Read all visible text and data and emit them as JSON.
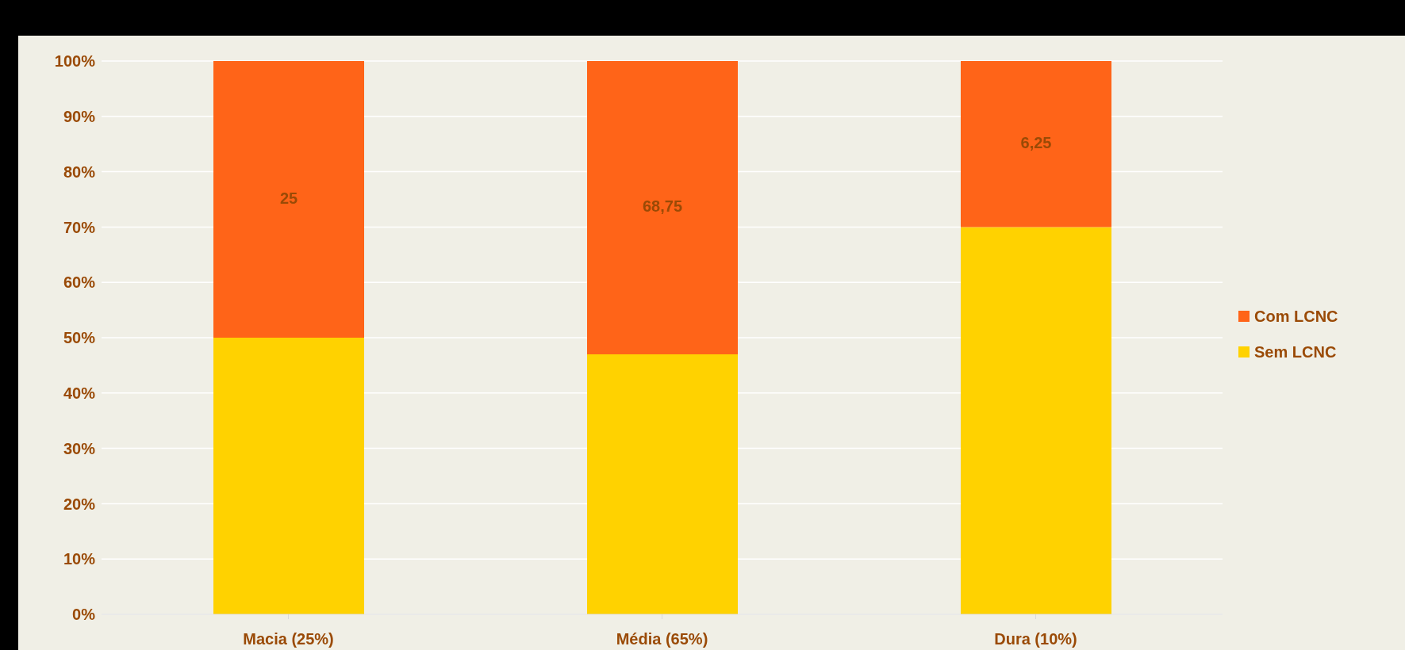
{
  "chart_data": {
    "type": "bar",
    "stacked": true,
    "categories": [
      "Macia (25%)",
      "Média (65%)",
      "Dura (10%)"
    ],
    "series": [
      {
        "name": "Sem LCNC",
        "color": "#ffd200",
        "values": [
          50,
          47,
          70
        ]
      },
      {
        "name": "Com LCNC",
        "color": "#ff6418",
        "values": [
          50,
          53,
          30
        ]
      }
    ],
    "annotations": [
      "25",
      "68,75",
      "6,25"
    ],
    "ylim": [
      0,
      100
    ],
    "yticks": [
      {
        "value": 0,
        "label": "0%"
      },
      {
        "value": 10,
        "label": "10%"
      },
      {
        "value": 20,
        "label": "20%"
      },
      {
        "value": 30,
        "label": "30%"
      },
      {
        "value": 40,
        "label": "40%"
      },
      {
        "value": 50,
        "label": "50%"
      },
      {
        "value": 60,
        "label": "60%"
      },
      {
        "value": 70,
        "label": "70%"
      },
      {
        "value": 80,
        "label": "80%"
      },
      {
        "value": 90,
        "label": "90%"
      },
      {
        "value": 100,
        "label": "100%"
      }
    ],
    "grid": "y",
    "legend": "right"
  }
}
